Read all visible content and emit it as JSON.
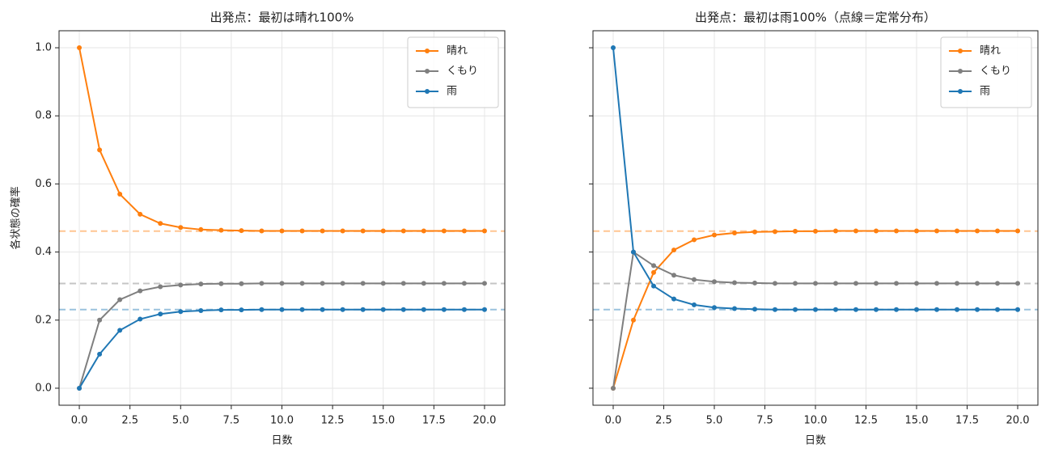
{
  "chart_data": [
    {
      "type": "line",
      "title": "出発点：最初は晴れ100%",
      "xlabel": "日数",
      "ylabel": "各状態の確率",
      "x": [
        0,
        1,
        2,
        3,
        4,
        5,
        6,
        7,
        8,
        9,
        10,
        11,
        12,
        13,
        14,
        15,
        16,
        17,
        18,
        19,
        20
      ],
      "series": [
        {
          "name": "晴れ",
          "color": "#ff7f0e",
          "values": [
            1.0,
            0.7,
            0.57,
            0.511,
            0.484,
            0.472,
            0.466,
            0.464,
            0.463,
            0.462,
            0.462,
            0.462,
            0.462,
            0.462,
            0.462,
            0.462,
            0.462,
            0.462,
            0.462,
            0.462,
            0.462
          ]
        },
        {
          "name": "くもり",
          "color": "#7f7f7f",
          "values": [
            0,
            0.2,
            0.26,
            0.286,
            0.298,
            0.303,
            0.306,
            0.307,
            0.307,
            0.308,
            0.308,
            0.308,
            0.308,
            0.308,
            0.308,
            0.308,
            0.308,
            0.308,
            0.308,
            0.308,
            0.308
          ]
        },
        {
          "name": "雨",
          "color": "#1f77b4",
          "values": [
            0,
            0.1,
            0.17,
            0.203,
            0.218,
            0.225,
            0.228,
            0.23,
            0.23,
            0.231,
            0.231,
            0.231,
            0.231,
            0.231,
            0.231,
            0.231,
            0.231,
            0.231,
            0.231,
            0.231,
            0.231
          ]
        }
      ],
      "hlines": [
        0.4615,
        0.3077,
        0.2308
      ],
      "xlim": [
        -1,
        21
      ],
      "ylim": [
        -0.05,
        1.05
      ],
      "xticks": [
        {
          "value": 0,
          "label": "0.0"
        },
        2.5,
        {
          "value": 5,
          "label": "5.0"
        },
        7.5,
        {
          "value": 10,
          "label": "10.0"
        },
        12.5,
        {
          "value": 15,
          "label": "15.0"
        },
        17.5,
        {
          "value": 20,
          "label": "20.0"
        }
      ],
      "yticks": [
        {
          "value": 0,
          "label": "0.0"
        },
        0.2,
        0.4,
        0.6,
        0.8,
        {
          "value": 1,
          "label": "1.0"
        }
      ],
      "grid": true,
      "legend": "upper right"
    },
    {
      "type": "line",
      "title": "出発点：最初は雨100%（点線＝定常分布）",
      "xlabel": "日数",
      "x": [
        0,
        1,
        2,
        3,
        4,
        5,
        6,
        7,
        8,
        9,
        10,
        11,
        12,
        13,
        14,
        15,
        16,
        17,
        18,
        19,
        20
      ],
      "series": [
        {
          "name": "晴れ",
          "color": "#ff7f0e",
          "values": [
            0,
            0.2,
            0.34,
            0.406,
            0.436,
            0.45,
            0.456,
            0.459,
            0.46,
            0.461,
            0.461,
            0.462,
            0.462,
            0.462,
            0.462,
            0.462,
            0.462,
            0.462,
            0.462,
            0.462,
            0.462
          ]
        },
        {
          "name": "くもり",
          "color": "#7f7f7f",
          "values": [
            0,
            0.4,
            0.36,
            0.332,
            0.319,
            0.313,
            0.31,
            0.309,
            0.308,
            0.308,
            0.308,
            0.308,
            0.308,
            0.308,
            0.308,
            0.308,
            0.308,
            0.308,
            0.308,
            0.308,
            0.308
          ]
        },
        {
          "name": "雨",
          "color": "#1f77b4",
          "values": [
            1.0,
            0.4,
            0.3,
            0.262,
            0.245,
            0.237,
            0.234,
            0.232,
            0.231,
            0.231,
            0.231,
            0.231,
            0.231,
            0.231,
            0.231,
            0.231,
            0.231,
            0.231,
            0.231,
            0.231,
            0.231
          ]
        }
      ],
      "hlines": [
        0.4615,
        0.3077,
        0.2308
      ],
      "xlim": [
        -1,
        21
      ],
      "ylim": [
        -0.05,
        1.05
      ],
      "xticks": [
        {
          "value": 0,
          "label": "0.0"
        },
        2.5,
        {
          "value": 5,
          "label": "5.0"
        },
        7.5,
        {
          "value": 10,
          "label": "10.0"
        },
        12.5,
        {
          "value": 15,
          "label": "15.0"
        },
        17.5,
        {
          "value": 20,
          "label": "20.0"
        }
      ],
      "yticks": [
        0,
        0.2,
        0.4,
        0.6,
        0.8,
        1
      ],
      "grid": true,
      "legend": "upper right"
    }
  ]
}
